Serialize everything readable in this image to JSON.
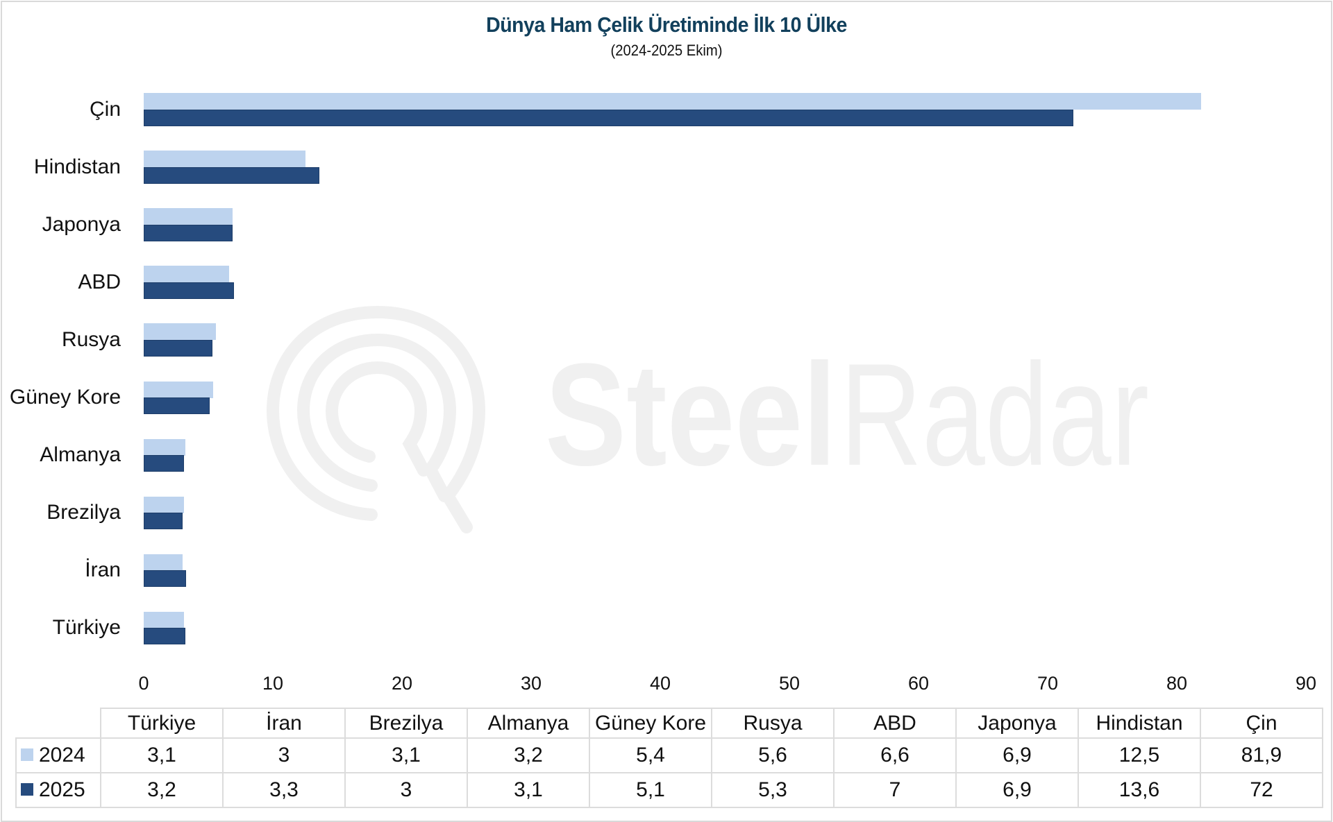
{
  "title": "Dünya Ham Çelik Üretiminde İlk 10 Ülke",
  "subtitle": "(2024-2025 Ekim)",
  "watermark": {
    "text_bold": "Steel",
    "text_light": "Radar"
  },
  "colors": {
    "series_2024": "#bdd3ee",
    "series_2025": "#264b7e",
    "title": "#12405c",
    "watermark": "#f0f0f0"
  },
  "axis": {
    "ticks": [
      "0",
      "10",
      "20",
      "30",
      "40",
      "50",
      "60",
      "70",
      "80",
      "90"
    ]
  },
  "categories_plot_order": [
    "Çin",
    "Hindistan",
    "Japonya",
    "ABD",
    "Rusya",
    "Güney Kore",
    "Almanya",
    "Brezilya",
    "İran",
    "Türkiye"
  ],
  "table": {
    "columns": [
      "Türkiye",
      "İran",
      "Brezilya",
      "Almanya",
      "Güney Kore",
      "Rusya",
      "ABD",
      "Japonya",
      "Hindistan",
      "Çin"
    ],
    "rows": [
      {
        "label": "2024",
        "values": [
          "3,1",
          "3",
          "3,1",
          "3,2",
          "5,4",
          "5,6",
          "6,6",
          "6,9",
          "12,5",
          "81,9"
        ]
      },
      {
        "label": "2025",
        "values": [
          "3,2",
          "3,3",
          "3",
          "3,1",
          "5,1",
          "5,3",
          "7",
          "6,9",
          "13,6",
          "72"
        ]
      }
    ]
  },
  "chart_data": {
    "type": "bar",
    "orientation": "horizontal",
    "title": "Dünya Ham Çelik Üretiminde İlk 10 Ülke",
    "subtitle": "(2024-2025 Ekim)",
    "categories": [
      "Türkiye",
      "İran",
      "Brezilya",
      "Almanya",
      "Güney Kore",
      "Rusya",
      "ABD",
      "Japonya",
      "Hindistan",
      "Çin"
    ],
    "series": [
      {
        "name": "2024",
        "color": "#bdd3ee",
        "values": [
          3.1,
          3.0,
          3.1,
          3.2,
          5.4,
          5.6,
          6.6,
          6.9,
          12.5,
          81.9
        ]
      },
      {
        "name": "2025",
        "color": "#264b7e",
        "values": [
          3.2,
          3.3,
          3.0,
          3.1,
          5.1,
          5.3,
          7.0,
          6.9,
          13.6,
          72.0
        ]
      }
    ],
    "xlabel": "",
    "ylabel": "",
    "xlim": [
      0,
      90
    ],
    "xticks": [
      0,
      10,
      20,
      30,
      40,
      50,
      60,
      70,
      80,
      90
    ],
    "grid": false,
    "legend": {
      "position": "data-table-below",
      "entries": [
        "2024",
        "2025"
      ]
    },
    "data_table": true
  }
}
